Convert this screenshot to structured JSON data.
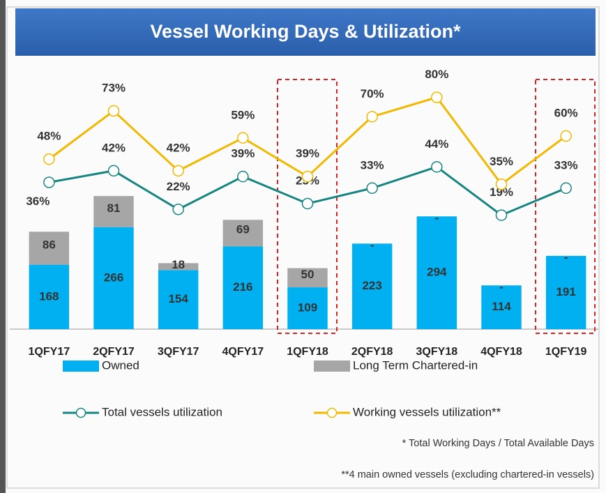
{
  "chart_data": {
    "type": "bar",
    "title": "Vessel Working Days & Utilization*",
    "categories": [
      "1QFY17",
      "2QFY17",
      "3QFY17",
      "4QFY17",
      "1QFY18",
      "2QFY18",
      "3QFY18",
      "4QFY18",
      "1QFY19"
    ],
    "series": [
      {
        "name": "Owned",
        "type": "bar",
        "color": "#00b0f0",
        "values": [
          168,
          266,
          154,
          216,
          109,
          223,
          294,
          114,
          191
        ]
      },
      {
        "name": "Long Term Chartered-in",
        "type": "bar",
        "color": "#a6a6a6",
        "values": [
          86,
          81,
          18,
          69,
          50,
          0,
          0,
          0,
          0
        ],
        "value_labels": [
          "86",
          "81",
          "18",
          "69",
          "50",
          "-",
          "-",
          "-",
          "-"
        ]
      },
      {
        "name": "Total vessels utilization",
        "type": "line",
        "axis": "y2",
        "color": "#17857f",
        "values": [
          36,
          42,
          22,
          39,
          25,
          33,
          44,
          19,
          33
        ],
        "value_labels": [
          "36%",
          "42%",
          "22%",
          "39%",
          "25%",
          "33%",
          "44%",
          "19%",
          "33%"
        ]
      },
      {
        "name": "Working vessels utilization**",
        "type": "line",
        "axis": "y2",
        "color": "#f2b800",
        "values": [
          48,
          73,
          42,
          59,
          39,
          70,
          80,
          35,
          60
        ],
        "value_labels": [
          "48%",
          "73%",
          "42%",
          "59%",
          "39%",
          "70%",
          "80%",
          "35%",
          "60%"
        ]
      }
    ],
    "ylim": [
      0,
      700
    ],
    "y2lim": [
      -40,
      99
    ],
    "notes": [
      "* Total Working Days / Total Available Days",
      "**4 main owned vessels (excluding chartered-in vessels)"
    ]
  }
}
